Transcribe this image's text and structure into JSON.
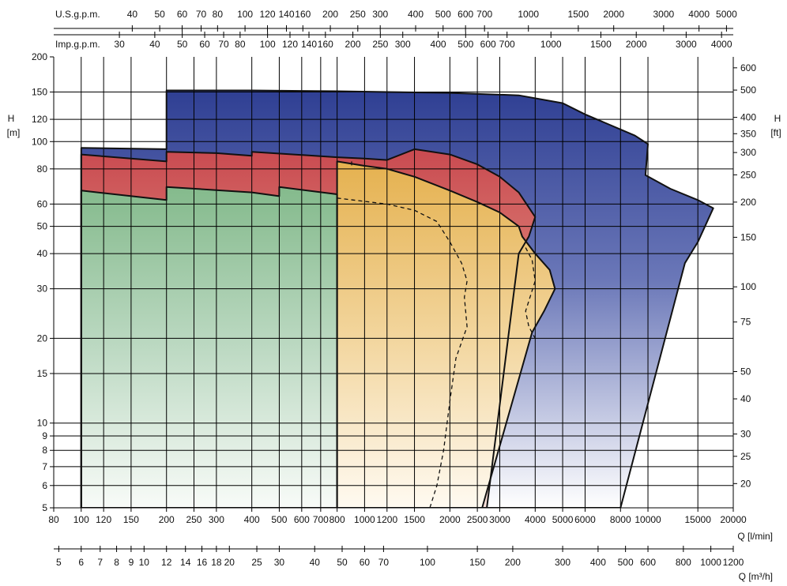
{
  "chart_data": {
    "type": "area",
    "yscale": "log",
    "xscale": "log",
    "x_axis": {
      "label": "Q [l/min]",
      "ticks": [
        80,
        100,
        120,
        150,
        200,
        250,
        300,
        400,
        500,
        600,
        700,
        800,
        1000,
        1200,
        1500,
        2000,
        2500,
        3000,
        4000,
        5000,
        6000,
        8000,
        10000,
        15000,
        20000
      ],
      "tick_labels": [
        "80",
        "100",
        "120",
        "150",
        "200",
        "250",
        "300",
        "400",
        "500",
        "600",
        "700",
        "800",
        "1000",
        "1200",
        "1500",
        "2000",
        "2500",
        "3000",
        "4000",
        "5000",
        "6000",
        "8000",
        "10000",
        "15000",
        "20000"
      ],
      "range": [
        80,
        20000
      ]
    },
    "y_axis": {
      "label_line1": "H",
      "label_line2": "[m]",
      "ticks": [
        5,
        6,
        7,
        8,
        9,
        10,
        15,
        20,
        30,
        40,
        50,
        60,
        80,
        100,
        120,
        150,
        200
      ],
      "tick_labels": [
        "5",
        "6",
        "7",
        "8",
        "9",
        "10",
        "15",
        "20",
        "30",
        "40",
        "50",
        "60",
        "80",
        "100",
        "120",
        "150",
        "200"
      ],
      "range": [
        5,
        200
      ]
    },
    "y2_axis": {
      "label_line1": "H",
      "label_line2": "[ft]",
      "ticks": [
        20,
        25,
        30,
        40,
        50,
        75,
        100,
        150,
        200,
        250,
        300,
        350,
        400,
        500,
        600
      ],
      "tick_labels": [
        "20",
        "25",
        "30",
        "40",
        "50",
        "75",
        "100",
        "150",
        "200",
        "250",
        "300",
        "350",
        "400",
        "500",
        "600"
      ]
    },
    "top_axis_usgpm": {
      "label": "U.S.g.p.m.",
      "ticks": [
        40,
        50,
        60,
        70,
        80,
        100,
        120,
        140,
        160,
        200,
        250,
        300,
        400,
        500,
        600,
        700,
        1000,
        1500,
        2000,
        3000,
        4000,
        5000
      ],
      "tick_labels": [
        "40",
        "50",
        "60",
        "70",
        "80",
        "100",
        "120",
        "140",
        "160",
        "200",
        "250",
        "300",
        "400",
        "500",
        "600",
        "700",
        "1000",
        "1500",
        "2000",
        "3000",
        "4000",
        "5000"
      ]
    },
    "top_axis_impgpm": {
      "label": "Imp.g.p.m.",
      "ticks": [
        30,
        40,
        50,
        60,
        70,
        80,
        100,
        120,
        140,
        160,
        200,
        250,
        300,
        400,
        500,
        600,
        700,
        1000,
        1500,
        2000,
        3000,
        4000
      ],
      "tick_labels": [
        "30",
        "40",
        "50",
        "60",
        "70",
        "80",
        "100",
        "120",
        "140",
        "160",
        "200",
        "250",
        "300",
        "400",
        "500",
        "600",
        "700",
        "1000",
        "1500",
        "2000",
        "3000",
        "4000"
      ]
    },
    "bottom_axis_m3h": {
      "label": "Q [m³/h]",
      "ticks": [
        5,
        6,
        7,
        8,
        9,
        10,
        12,
        14,
        16,
        18,
        20,
        25,
        30,
        40,
        50,
        60,
        70,
        100,
        150,
        200,
        300,
        400,
        500,
        600,
        800,
        1000,
        1200
      ],
      "tick_labels": [
        "5",
        "6",
        "7",
        "8",
        "9",
        "10",
        "12",
        "14",
        "16",
        "18",
        "20",
        "25",
        "30",
        "40",
        "50",
        "60",
        "70",
        "100",
        "150",
        "200",
        "300",
        "400",
        "500",
        "600",
        "800",
        "1000",
        "1200"
      ]
    },
    "grid": true,
    "series": [
      {
        "key": "blue",
        "color": "#3a4b9a",
        "boundary": [
          [
            100,
            5
          ],
          [
            100,
            95
          ],
          [
            200,
            94
          ],
          [
            200,
            152
          ],
          [
            400,
            152
          ],
          [
            800,
            151
          ],
          [
            1200,
            150
          ],
          [
            2000,
            149
          ],
          [
            3500,
            146
          ],
          [
            5000,
            137
          ],
          [
            6000,
            125
          ],
          [
            7000,
            117
          ],
          [
            9000,
            105
          ],
          [
            10000,
            98
          ],
          [
            9800,
            76
          ],
          [
            12000,
            68
          ],
          [
            15000,
            62
          ],
          [
            17000,
            58
          ],
          [
            15000,
            44
          ],
          [
            13500,
            37
          ],
          [
            8000,
            5
          ]
        ]
      },
      {
        "key": "red",
        "color": "#d05a5c",
        "boundary": [
          [
            100,
            5
          ],
          [
            100,
            90
          ],
          [
            200,
            85
          ],
          [
            200,
            92
          ],
          [
            300,
            91
          ],
          [
            400,
            89
          ],
          [
            400,
            92
          ],
          [
            800,
            88
          ],
          [
            1000,
            87
          ],
          [
            1200,
            86
          ],
          [
            1500,
            94
          ],
          [
            2000,
            90
          ],
          [
            2500,
            83
          ],
          [
            3000,
            75
          ],
          [
            3500,
            66
          ],
          [
            4000,
            54
          ],
          [
            3800,
            46
          ],
          [
            3500,
            40
          ],
          [
            2700,
            5
          ]
        ]
      },
      {
        "key": "yellow",
        "color": "#e9b95c",
        "boundary": [
          [
            800,
            5
          ],
          [
            800,
            85
          ],
          [
            1000,
            82
          ],
          [
            1200,
            80
          ],
          [
            1500,
            75
          ],
          [
            2000,
            67
          ],
          [
            2500,
            61
          ],
          [
            3000,
            56
          ],
          [
            3500,
            50
          ],
          [
            3600,
            46
          ],
          [
            4000,
            40
          ],
          [
            4500,
            35
          ],
          [
            4700,
            30
          ],
          [
            4300,
            25
          ],
          [
            3900,
            21
          ],
          [
            2600,
            5
          ]
        ]
      },
      {
        "key": "green",
        "color": "#86bb8e",
        "boundary": [
          [
            100,
            5
          ],
          [
            100,
            67
          ],
          [
            200,
            62
          ],
          [
            200,
            69
          ],
          [
            400,
            66
          ],
          [
            500,
            64
          ],
          [
            500,
            69
          ],
          [
            800,
            65
          ],
          [
            800,
            5
          ]
        ]
      }
    ],
    "dashed_curves": [
      [
        [
          800,
          63
        ],
        [
          1200,
          60
        ],
        [
          1500,
          57
        ],
        [
          1800,
          52
        ],
        [
          2000,
          44
        ],
        [
          2200,
          37
        ],
        [
          2300,
          32
        ],
        [
          2250,
          28
        ],
        [
          2300,
          22
        ],
        [
          2100,
          17
        ],
        [
          2000,
          12
        ],
        [
          1900,
          8
        ],
        [
          1800,
          6
        ],
        [
          1700,
          5
        ]
      ],
      [
        [
          900,
          85
        ],
        [
          900,
          81
        ]
      ],
      [
        [
          3700,
          42
        ],
        [
          3900,
          38
        ],
        [
          4000,
          32
        ],
        [
          3700,
          25
        ],
        [
          3800,
          22
        ],
        [
          4000,
          20
        ]
      ]
    ]
  }
}
